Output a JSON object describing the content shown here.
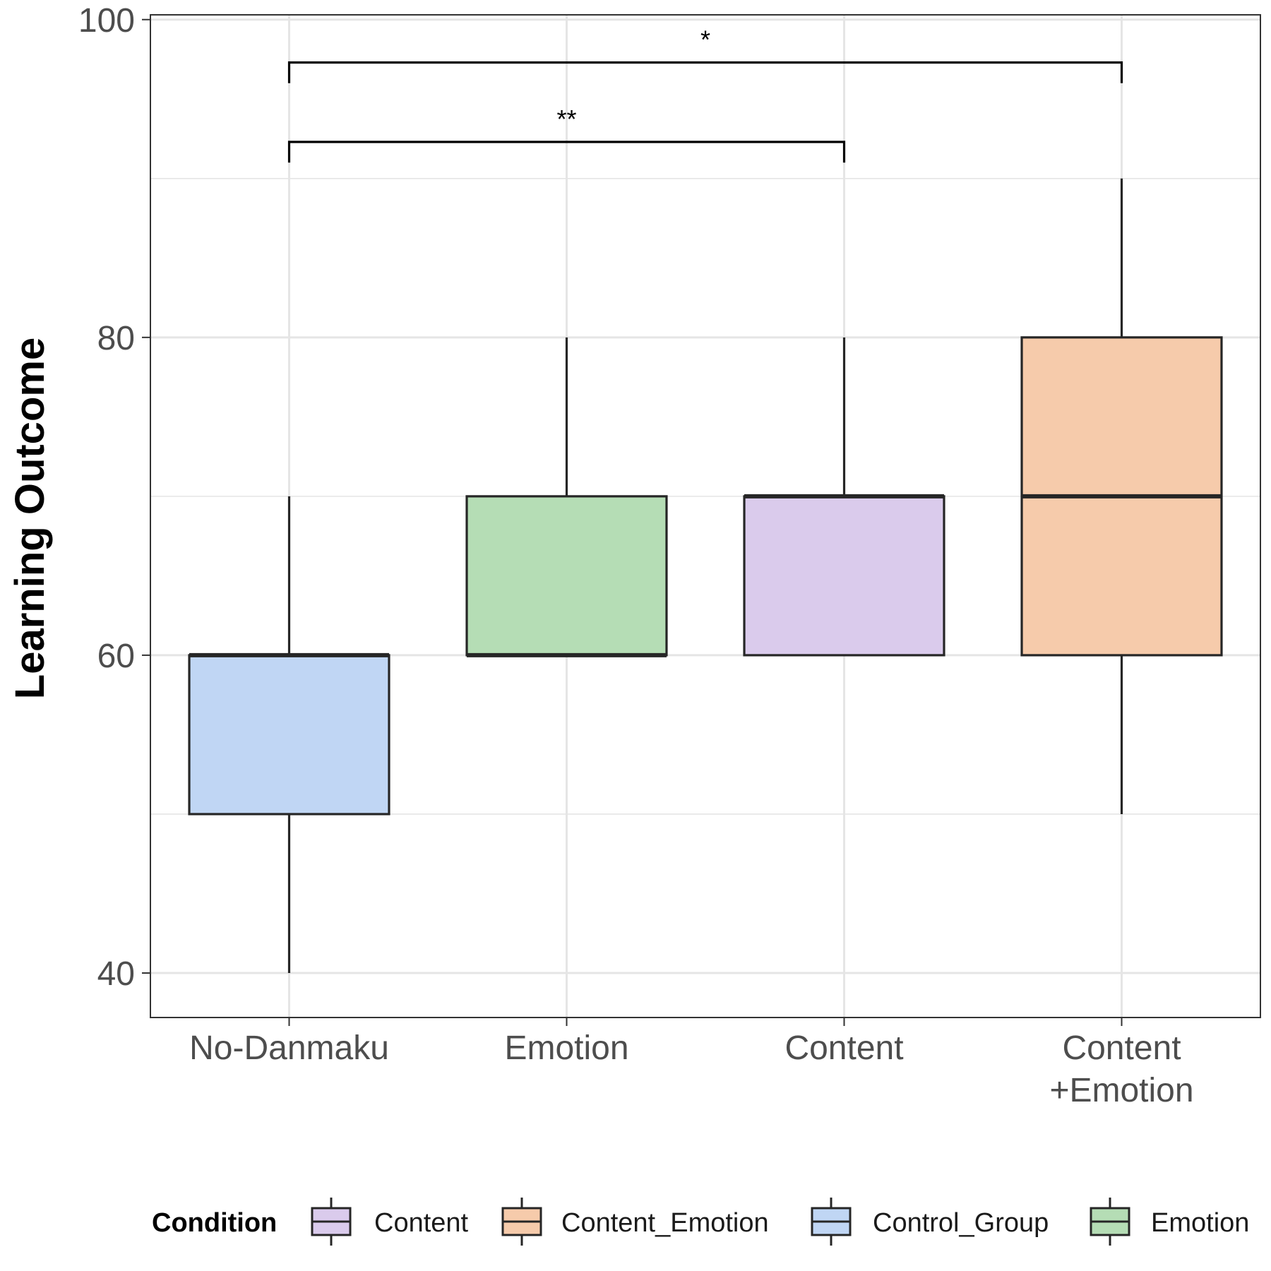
{
  "chart_data": {
    "type": "box",
    "ylabel": "Learning Outcome",
    "xlabel": "",
    "ylim": [
      37.2,
      100.3
    ],
    "yticks": [
      40,
      60,
      80,
      100
    ],
    "minor_yticks": [
      50,
      70,
      90
    ],
    "grid": true,
    "categories": [
      {
        "lines": [
          "No-Danmaku"
        ],
        "group": "Control_Group"
      },
      {
        "lines": [
          "Emotion"
        ],
        "group": "Emotion"
      },
      {
        "lines": [
          "Content"
        ],
        "group": "Content"
      },
      {
        "lines": [
          "Content",
          "+Emotion"
        ],
        "group": "Content_Emotion"
      }
    ],
    "boxes": [
      {
        "whisker_low": 40,
        "q1": 50,
        "median": 60,
        "q3": 60,
        "whisker_high": 70
      },
      {
        "whisker_low": 60,
        "q1": 60,
        "median": 60,
        "q3": 70,
        "whisker_high": 80
      },
      {
        "whisker_low": 60,
        "q1": 60,
        "median": 70,
        "q3": 70,
        "whisker_high": 80
      },
      {
        "whisker_low": 50,
        "q1": 60,
        "median": 70,
        "q3": 80,
        "whisker_high": 90
      }
    ],
    "significance": [
      {
        "from": 0,
        "to": 3,
        "label": "*",
        "y": 97.3,
        "y_drop": 96.0
      },
      {
        "from": 0,
        "to": 2,
        "label": "**",
        "y": 92.3,
        "y_drop": 91.0
      }
    ],
    "legend": {
      "title": "Condition",
      "position": "bottom",
      "entries": [
        {
          "label": "Content",
          "group": "Content"
        },
        {
          "label": "Content_Emotion",
          "group": "Content_Emotion"
        },
        {
          "label": "Control_Group",
          "group": "Control_Group"
        },
        {
          "label": "Emotion",
          "group": "Emotion"
        }
      ]
    },
    "colors": {
      "Content": "#dacbec",
      "Content_Emotion": "#f6cbab",
      "Control_Group": "#c0d6f4",
      "Emotion": "#b5ddb5",
      "outline": "#262626",
      "grid": "#e5e5e5",
      "panel_border": "#333333"
    }
  }
}
